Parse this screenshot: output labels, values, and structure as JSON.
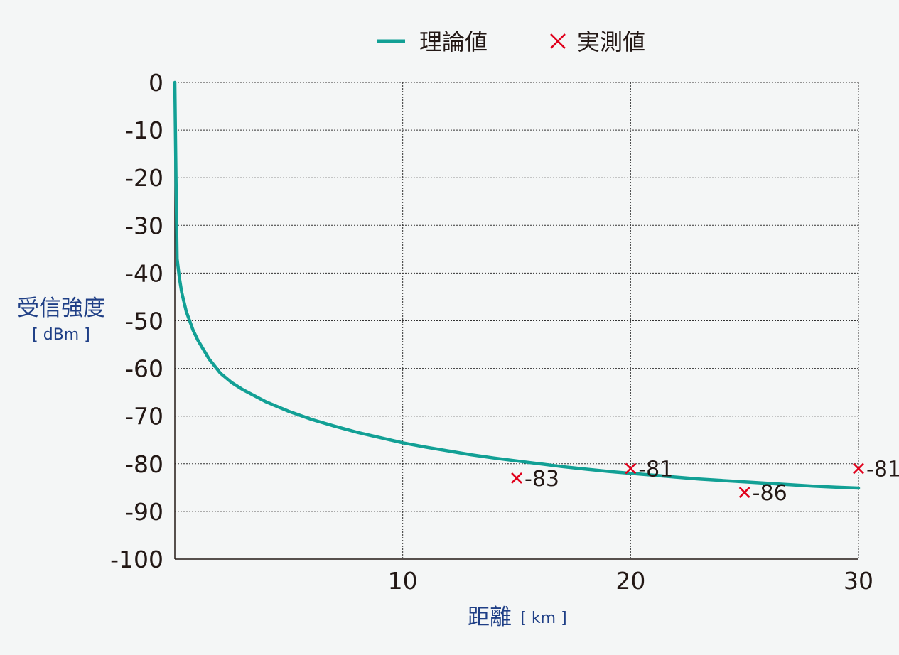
{
  "chart_data": {
    "type": "line",
    "legend": {
      "placement": "top-center",
      "items": [
        {
          "label": "理論値",
          "marker": "line",
          "color": "#12a095"
        },
        {
          "label": "実測値",
          "marker": "cross",
          "color": "#e0001b"
        }
      ]
    },
    "ylabel": "受信強度",
    "ylabel_unit": "[ dBm ]",
    "xlabel": "距離",
    "xlabel_unit": "[ km ]",
    "xlim": [
      0,
      30
    ],
    "ylim": [
      -100,
      0
    ],
    "x_ticks": [
      "10",
      "20",
      "30"
    ],
    "y_ticks": [
      "0",
      "-10",
      "-20",
      "-30",
      "-40",
      "-50",
      "-60",
      "-70",
      "-80",
      "-90",
      "-100"
    ],
    "grid": "dotted",
    "series": [
      {
        "name": "理論値",
        "color": "#12a095",
        "points": [
          [
            0.0,
            0
          ],
          [
            0.05,
            -20
          ],
          [
            0.1,
            -37
          ],
          [
            0.2,
            -41
          ],
          [
            0.3,
            -44
          ],
          [
            0.5,
            -48
          ],
          [
            0.8,
            -52
          ],
          [
            1.0,
            -54
          ],
          [
            1.5,
            -58
          ],
          [
            2.0,
            -61
          ],
          [
            2.5,
            -63
          ],
          [
            3.0,
            -64.5
          ],
          [
            4.0,
            -67
          ],
          [
            5.0,
            -69
          ],
          [
            6.0,
            -70.7
          ],
          [
            7.0,
            -72.1
          ],
          [
            8.0,
            -73.4
          ],
          [
            9.0,
            -74.5
          ],
          [
            10.0,
            -75.6
          ],
          [
            11.0,
            -76.5
          ],
          [
            12.0,
            -77.3
          ],
          [
            13.0,
            -78.1
          ],
          [
            14.0,
            -78.8
          ],
          [
            15.0,
            -79.4
          ],
          [
            16.0,
            -80.0
          ],
          [
            17.0,
            -80.6
          ],
          [
            18.0,
            -81.1
          ],
          [
            19.0,
            -81.6
          ],
          [
            20.0,
            -82.0
          ],
          [
            21.0,
            -82.4
          ],
          [
            22.0,
            -82.8
          ],
          [
            23.0,
            -83.2
          ],
          [
            24.0,
            -83.5
          ],
          [
            25.0,
            -83.8
          ],
          [
            26.0,
            -84.1
          ],
          [
            27.0,
            -84.4
          ],
          [
            28.0,
            -84.7
          ],
          [
            29.0,
            -84.9
          ],
          [
            30.0,
            -85.1
          ]
        ]
      },
      {
        "name": "実測値",
        "color": "#e0001b",
        "points": [
          [
            15,
            -83
          ],
          [
            20,
            -81
          ],
          [
            25,
            -86
          ],
          [
            30,
            -81
          ]
        ],
        "labels": [
          "-83",
          "-81",
          "-86",
          "-81"
        ]
      }
    ]
  }
}
